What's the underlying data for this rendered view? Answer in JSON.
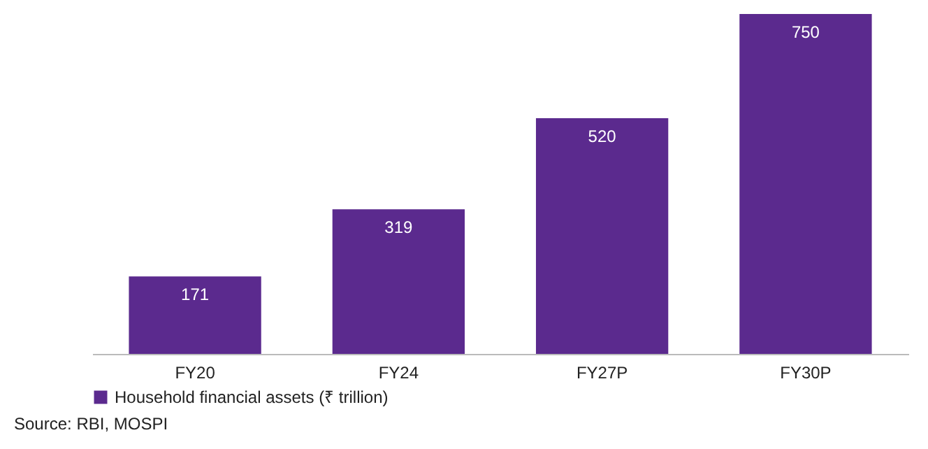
{
  "chart_data": {
    "type": "bar",
    "categories": [
      "FY20",
      "FY24",
      "FY27P",
      "FY30P"
    ],
    "series": [
      {
        "name": "Household financial assets (₹ trillion)",
        "color": "#5b2a8e",
        "values": [
          171,
          319,
          520,
          750
        ]
      }
    ],
    "data_labels": true,
    "legend": "bottom",
    "grid": false,
    "annotations": [
      "Source: RBI, MOSPI"
    ]
  }
}
